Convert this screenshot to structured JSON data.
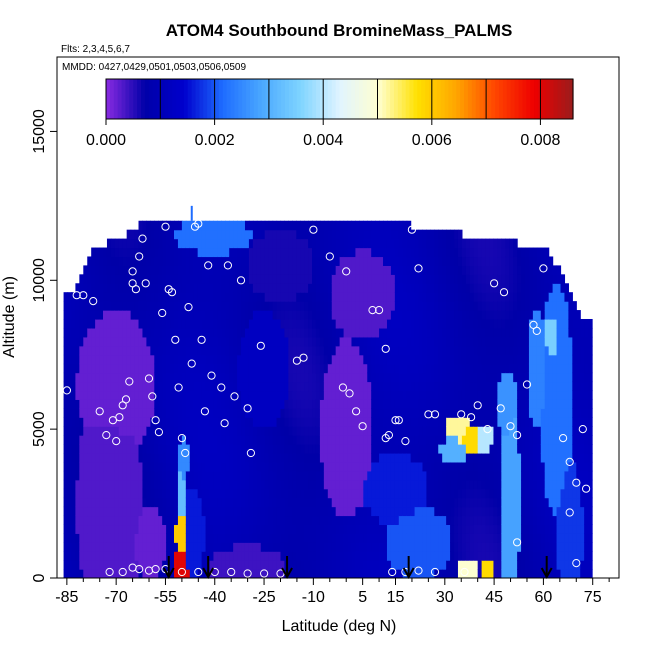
{
  "chart_data": {
    "type": "heatmap",
    "title": "ATOM4 Southbound BromineMass_PALMS",
    "subtitle_flights": "Flts: 2,3,4,5,6,7",
    "subtitle_dates": "MMDD: 0427,0429,0501,0503,0506,0509",
    "xlabel": "Latitude (deg N)",
    "ylabel": "Altitude (m)",
    "xlim": [
      -88,
      83
    ],
    "ylim": [
      0,
      17500
    ],
    "x_ticks": [
      -85,
      -70,
      -55,
      -40,
      -25,
      -10,
      5,
      15,
      30,
      45,
      60,
      75
    ],
    "x_tick_labels": [
      "-85",
      "-70",
      "-55",
      "-40",
      "-25",
      "-10",
      "5",
      "15",
      "30",
      "45",
      "60",
      "75"
    ],
    "x_minor_ticks": [
      -80,
      -75,
      -65,
      -60,
      -50,
      -45,
      -35,
      -30,
      -20,
      -15,
      -5,
      0,
      10,
      20,
      25,
      35,
      40,
      50,
      55,
      65,
      70,
      80
    ],
    "y_ticks": [
      0,
      5000,
      10000,
      15000
    ],
    "y_tick_labels": [
      "0",
      "5000",
      "10000",
      "15000"
    ],
    "colorbar": {
      "min": 0,
      "max": 0.0086,
      "tick_values": [
        0,
        0.002,
        0.004,
        0.006,
        0.008
      ],
      "tick_labels": [
        "0.000",
        "0.002",
        "0.004",
        "0.006",
        "0.008"
      ],
      "divisions": [
        0.001,
        0.002,
        0.003,
        0.004,
        0.005,
        0.006,
        0.007,
        0.008
      ]
    },
    "colormap": [
      "#8a2be2",
      "#0000a8",
      "#0000cd",
      "#1e6cff",
      "#4aa8ff",
      "#7fd4ff",
      "#e0f4ff",
      "#ffffd0",
      "#ffe000",
      "#ffa500",
      "#ff4500",
      "#ee0000",
      "#9b1c1c"
    ],
    "default_value": 0.0009,
    "column_tops": [
      [
        -82,
        9600
      ],
      [
        -78,
        10600
      ],
      [
        -76,
        11000
      ],
      [
        -70,
        11200
      ],
      [
        -62,
        11800
      ],
      [
        -55,
        12000
      ],
      [
        -45,
        11900
      ],
      [
        -30,
        11900
      ],
      [
        -15,
        11850
      ],
      [
        0,
        11800
      ],
      [
        10,
        11900
      ],
      [
        15,
        11850
      ],
      [
        20,
        11700
      ],
      [
        30,
        11500
      ],
      [
        45,
        11200
      ],
      [
        60,
        11000
      ],
      [
        66,
        10000
      ],
      [
        72,
        8500
      ]
    ],
    "value_patches": [
      {
        "lat": -72,
        "alt": 2500,
        "rlat": 10,
        "ralt": 4500,
        "value": 0.0003
      },
      {
        "lat": -70,
        "alt": 6500,
        "rlat": 12,
        "ralt": 2500,
        "value": 0.0002
      },
      {
        "lat": -60,
        "alt": 1200,
        "rlat": 5,
        "ralt": 1200,
        "value": 0.0002
      },
      {
        "lat": -50,
        "alt": 400,
        "rlat": 2.2,
        "ralt": 900,
        "value": 0.008
      },
      {
        "lat": -50,
        "alt": 1500,
        "rlat": 2,
        "ralt": 900,
        "value": 0.006
      },
      {
        "lat": -50,
        "alt": 2700,
        "rlat": 1.8,
        "ralt": 900,
        "value": 0.0032
      },
      {
        "lat": -49.5,
        "alt": 4000,
        "rlat": 1.6,
        "ralt": 800,
        "value": 0.0025
      },
      {
        "lat": -47,
        "alt": 1500,
        "rlat": 4,
        "ralt": 1500,
        "value": 0.0016
      },
      {
        "lat": -40,
        "alt": 11500,
        "rlat": 12,
        "ralt": 600,
        "value": 0.0022
      },
      {
        "lat": -25,
        "alt": 7000,
        "rlat": 8,
        "ralt": 2000,
        "value": 0.0012
      },
      {
        "lat": -20,
        "alt": 10500,
        "rlat": 10,
        "ralt": 1200,
        "value": 0.0006
      },
      {
        "lat": 0,
        "alt": 5000,
        "rlat": 8,
        "ralt": 3000,
        "value": 0.0002
      },
      {
        "lat": -30,
        "alt": 300,
        "rlat": 12,
        "ralt": 800,
        "value": 0.0004
      },
      {
        "lat": 5,
        "alt": 9500,
        "rlat": 10,
        "ralt": 1500,
        "value": 0.0003
      },
      {
        "lat": 15,
        "alt": 3000,
        "rlat": 10,
        "ralt": 1200,
        "value": 0.0016
      },
      {
        "lat": 22,
        "alt": 1200,
        "rlat": 10,
        "ralt": 1200,
        "value": 0.002
      },
      {
        "lat": 34,
        "alt": 5000,
        "rlat": 4,
        "ralt": 400,
        "value": 0.0052
      },
      {
        "lat": 38,
        "alt": 4700,
        "rlat": 3,
        "ralt": 500,
        "value": 0.0058
      },
      {
        "lat": 42,
        "alt": 4700,
        "rlat": 3,
        "ralt": 400,
        "value": 0.004
      },
      {
        "lat": 33,
        "alt": 4300,
        "rlat": 5,
        "ralt": 400,
        "value": 0.003
      },
      {
        "lat": 37,
        "alt": 250,
        "rlat": 3.5,
        "ralt": 350,
        "value": 0.005
      },
      {
        "lat": 43,
        "alt": 250,
        "rlat": 2,
        "ralt": 300,
        "value": 0.0058
      },
      {
        "lat": 50,
        "alt": 2500,
        "rlat": 3,
        "ralt": 3500,
        "value": 0.0028
      },
      {
        "lat": 49,
        "alt": 5800,
        "rlat": 3,
        "ralt": 1200,
        "value": 0.0026
      },
      {
        "lat": 58,
        "alt": 7000,
        "rlat": 3,
        "ralt": 2000,
        "value": 0.0024
      },
      {
        "lat": 63,
        "alt": 8000,
        "rlat": 3,
        "ralt": 1000,
        "value": 0.0035
      },
      {
        "lat": 64,
        "alt": 6000,
        "rlat": 5,
        "ralt": 4000,
        "value": 0.0022
      },
      {
        "lat": 68,
        "alt": 1500,
        "rlat": 4,
        "ralt": 2500,
        "value": 0.0018
      }
    ],
    "samples": [
      {
        "lat": -85,
        "alt": 6300
      },
      {
        "lat": -82,
        "alt": 9500
      },
      {
        "lat": -80,
        "alt": 9500
      },
      {
        "lat": -77,
        "alt": 9300
      },
      {
        "lat": -75,
        "alt": 5600
      },
      {
        "lat": -73,
        "alt": 4800
      },
      {
        "lat": -71,
        "alt": 5300
      },
      {
        "lat": -70,
        "alt": 4600
      },
      {
        "lat": -69,
        "alt": 5400
      },
      {
        "lat": -68,
        "alt": 5800
      },
      {
        "lat": -67,
        "alt": 6000
      },
      {
        "lat": -66,
        "alt": 6600
      },
      {
        "lat": -65,
        "alt": 10300
      },
      {
        "lat": -65,
        "alt": 9900
      },
      {
        "lat": -64,
        "alt": 9700
      },
      {
        "lat": -63,
        "alt": 10800
      },
      {
        "lat": -62,
        "alt": 11400
      },
      {
        "lat": -61,
        "alt": 9900
      },
      {
        "lat": -60,
        "alt": 6700
      },
      {
        "lat": -59,
        "alt": 6100
      },
      {
        "lat": -58,
        "alt": 5300
      },
      {
        "lat": -57,
        "alt": 4900
      },
      {
        "lat": -56,
        "alt": 8900
      },
      {
        "lat": -55,
        "alt": 11800
      },
      {
        "lat": -54,
        "alt": 9700
      },
      {
        "lat": -53,
        "alt": 9600
      },
      {
        "lat": -52,
        "alt": 8000
      },
      {
        "lat": -51,
        "alt": 6400
      },
      {
        "lat": -50,
        "alt": 4700
      },
      {
        "lat": -49,
        "alt": 4200
      },
      {
        "lat": -48,
        "alt": 9100
      },
      {
        "lat": -47,
        "alt": 7200
      },
      {
        "lat": -46,
        "alt": 11800
      },
      {
        "lat": -45,
        "alt": 11900
      },
      {
        "lat": -44,
        "alt": 8000
      },
      {
        "lat": -43,
        "alt": 5600
      },
      {
        "lat": -42,
        "alt": 10500
      },
      {
        "lat": -41,
        "alt": 6800
      },
      {
        "lat": -38,
        "alt": 6400
      },
      {
        "lat": -37,
        "alt": 5200
      },
      {
        "lat": -36,
        "alt": 10500
      },
      {
        "lat": -34,
        "alt": 6100
      },
      {
        "lat": -32,
        "alt": 10000
      },
      {
        "lat": -30,
        "alt": 5700
      },
      {
        "lat": -29,
        "alt": 4200
      },
      {
        "lat": -26,
        "alt": 7800
      },
      {
        "lat": -15,
        "alt": 7300
      },
      {
        "lat": -13,
        "alt": 7400
      },
      {
        "lat": -10,
        "alt": 11700
      },
      {
        "lat": -5,
        "alt": 10800
      },
      {
        "lat": -1,
        "alt": 6400
      },
      {
        "lat": 0,
        "alt": 10300
      },
      {
        "lat": 1,
        "alt": 6200
      },
      {
        "lat": 3,
        "alt": 5600
      },
      {
        "lat": 5,
        "alt": 5100
      },
      {
        "lat": 8,
        "alt": 9000
      },
      {
        "lat": 10,
        "alt": 9000
      },
      {
        "lat": 12,
        "alt": 7700
      },
      {
        "lat": 12,
        "alt": 4700
      },
      {
        "lat": 13,
        "alt": 4800
      },
      {
        "lat": 15,
        "alt": 5300
      },
      {
        "lat": 16,
        "alt": 5300
      },
      {
        "lat": 18,
        "alt": 4600
      },
      {
        "lat": 20,
        "alt": 11700
      },
      {
        "lat": 22,
        "alt": 10400
      },
      {
        "lat": 25,
        "alt": 5500
      },
      {
        "lat": 27,
        "alt": 5500
      },
      {
        "lat": 35,
        "alt": 5500
      },
      {
        "lat": 38,
        "alt": 5400
      },
      {
        "lat": 40,
        "alt": 5800
      },
      {
        "lat": 43,
        "alt": 5000
      },
      {
        "lat": 45,
        "alt": 9900
      },
      {
        "lat": 47,
        "alt": 5700
      },
      {
        "lat": 48,
        "alt": 9600
      },
      {
        "lat": 50,
        "alt": 5100
      },
      {
        "lat": 52,
        "alt": 4800
      },
      {
        "lat": 55,
        "alt": 6500
      },
      {
        "lat": 57,
        "alt": 8500
      },
      {
        "lat": 58,
        "alt": 8300
      },
      {
        "lat": 60,
        "alt": 10400
      },
      {
        "lat": 65,
        "alt": 11400
      },
      {
        "lat": 66,
        "alt": 4700
      },
      {
        "lat": 68,
        "alt": 3900
      },
      {
        "lat": 70,
        "alt": 3200
      },
      {
        "lat": 72,
        "alt": 5000
      },
      {
        "lat": 73,
        "alt": 3000
      },
      {
        "lat": 70,
        "alt": 500
      },
      {
        "lat": 68,
        "alt": 2200
      },
      {
        "lat": 52,
        "alt": 1200
      },
      {
        "lat": 36,
        "alt": 200
      },
      {
        "lat": 27,
        "alt": 200
      },
      {
        "lat": 22,
        "alt": 250
      },
      {
        "lat": 18,
        "alt": 200
      },
      {
        "lat": 14,
        "alt": 200
      },
      {
        "lat": -20,
        "alt": 150
      },
      {
        "lat": -25,
        "alt": 150
      },
      {
        "lat": -30,
        "alt": 150
      },
      {
        "lat": -35,
        "alt": 200
      },
      {
        "lat": -40,
        "alt": 200
      },
      {
        "lat": -45,
        "alt": 200
      },
      {
        "lat": -50,
        "alt": 200
      },
      {
        "lat": -55,
        "alt": 300
      },
      {
        "lat": -58,
        "alt": 300
      },
      {
        "lat": -60,
        "alt": 250
      },
      {
        "lat": -63,
        "alt": 300
      },
      {
        "lat": -65,
        "alt": 350
      },
      {
        "lat": -68,
        "alt": 200
      },
      {
        "lat": -72,
        "alt": 200
      }
    ],
    "arrows_lat": [
      -54,
      -42,
      -18,
      19,
      61
    ],
    "tick_mark": {
      "lat": -47,
      "alt_from": 12000,
      "alt_to": 12500
    }
  }
}
